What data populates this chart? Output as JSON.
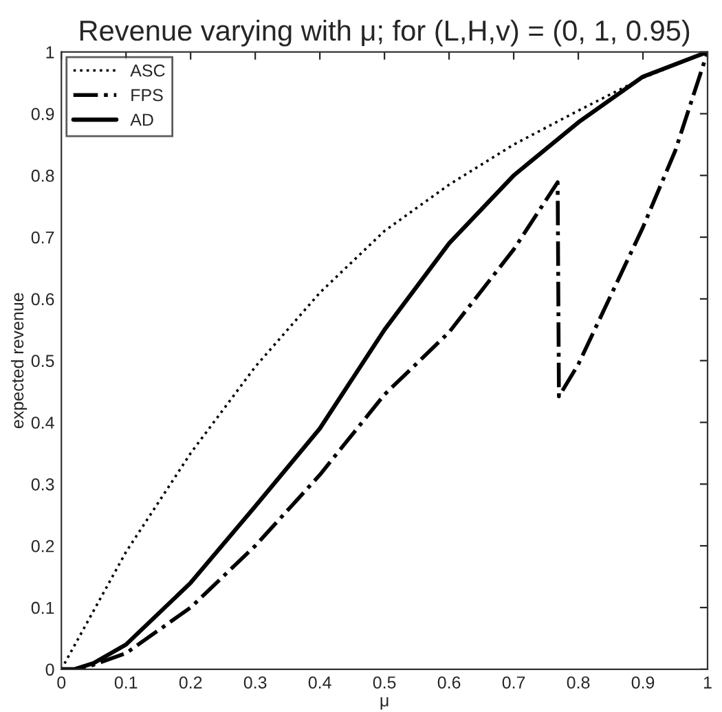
{
  "chart_data": {
    "type": "line",
    "title": "Revenue varying with μ; for (L,H,v) = (0, 1, 0.95)",
    "xlabel": "μ",
    "ylabel": "expected revenue",
    "xlim": [
      0,
      1
    ],
    "ylim": [
      0,
      1
    ],
    "xticks": [
      0,
      0.1,
      0.2,
      0.3,
      0.4,
      0.5,
      0.6,
      0.7,
      0.8,
      0.9,
      1
    ],
    "yticks": [
      0,
      0.1,
      0.2,
      0.3,
      0.4,
      0.5,
      0.6,
      0.7,
      0.8,
      0.9,
      1
    ],
    "grid": false,
    "legend": "top left",
    "marker": "none",
    "series": [
      {
        "name": "ASC",
        "color": "#000000",
        "line_style": "dotted",
        "x": [
          0,
          0.1,
          0.2,
          0.3,
          0.4,
          0.5,
          0.6,
          0.7,
          0.8,
          0.9,
          1
        ],
        "values": [
          0,
          0.19,
          0.35,
          0.49,
          0.61,
          0.71,
          0.785,
          0.85,
          0.905,
          0.958,
          1
        ]
      },
      {
        "name": "FPS",
        "color": "#000000",
        "line_style": "dashdot",
        "x": [
          0,
          0.03,
          0.1,
          0.2,
          0.3,
          0.4,
          0.5,
          0.6,
          0.7,
          0.768,
          0.77,
          0.8,
          0.9,
          0.95,
          1
        ],
        "values": [
          0,
          0,
          0.026,
          0.1,
          0.2,
          0.315,
          0.445,
          0.546,
          0.68,
          0.789,
          0.442,
          0.494,
          0.716,
          0.84,
          1
        ]
      },
      {
        "name": "AD",
        "color": "#000000",
        "line_style": "solid",
        "x": [
          0,
          0.02,
          0.05,
          0.1,
          0.2,
          0.3,
          0.4,
          0.5,
          0.6,
          0.7,
          0.8,
          0.9,
          1
        ],
        "values": [
          0,
          0,
          0.01,
          0.04,
          0.14,
          0.264,
          0.39,
          0.55,
          0.69,
          0.8,
          0.886,
          0.96,
          1
        ]
      }
    ]
  }
}
